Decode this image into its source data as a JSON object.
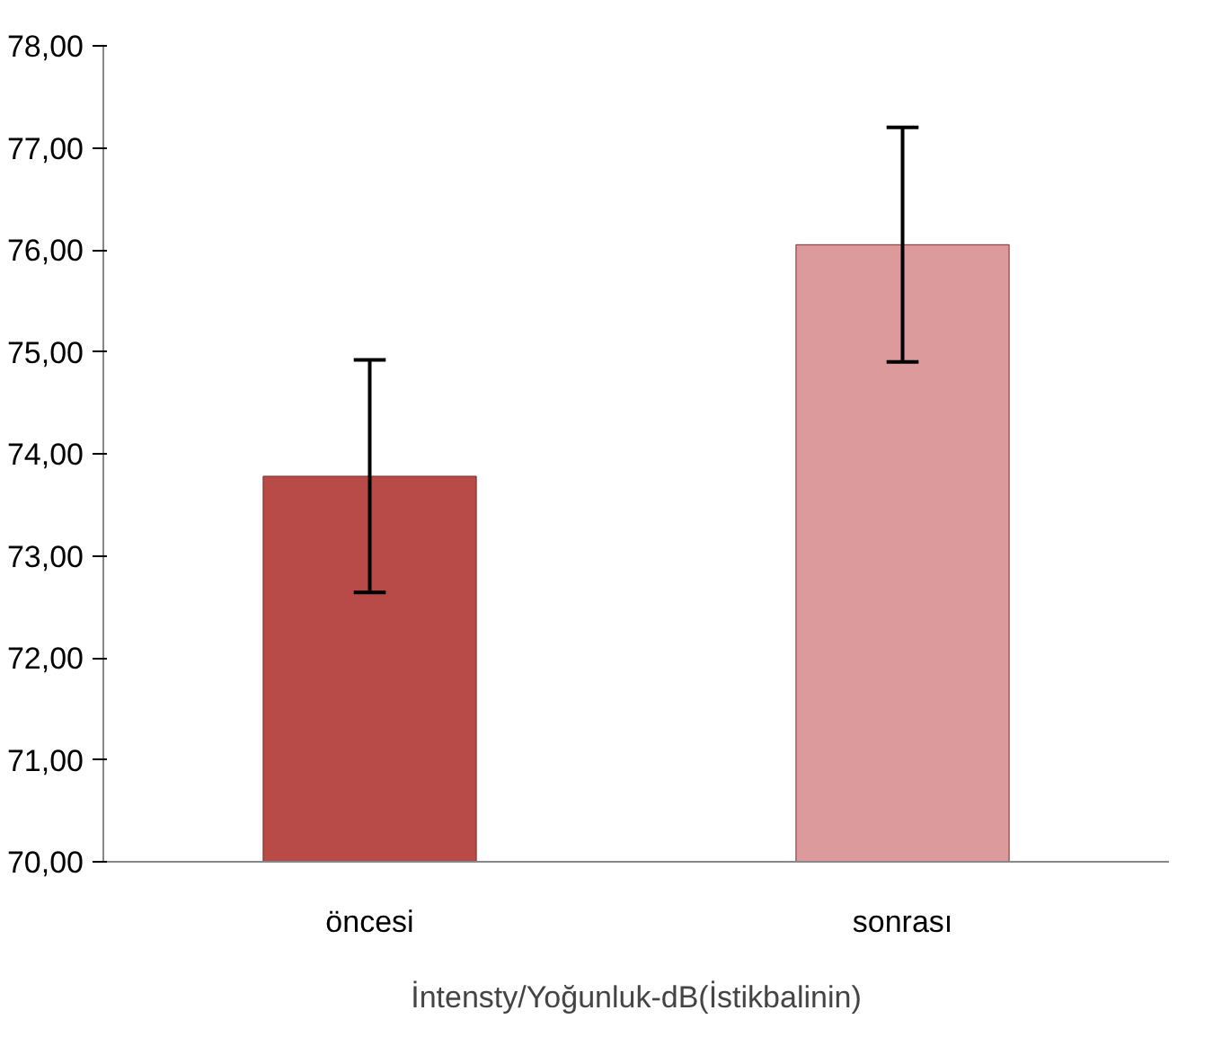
{
  "chart_data": {
    "type": "bar",
    "xlabel": "İntensty/Yoğunluk-dB(İstikbalinin)",
    "categories": [
      "öncesi",
      "sonrası"
    ],
    "values": [
      73.78,
      76.05
    ],
    "colors": [
      "#b84a48",
      "#dc9a9c"
    ],
    "errors": [
      1.14,
      1.15
    ],
    "ylim": [
      70,
      78
    ],
    "yticks": [
      {
        "value": 70,
        "label": "70,00"
      },
      {
        "value": 71,
        "label": "71,00"
      },
      {
        "value": 72,
        "label": "72,00"
      },
      {
        "value": 73,
        "label": "73,00"
      },
      {
        "value": 74,
        "label": "74,00"
      },
      {
        "value": 75,
        "label": "75,00"
      },
      {
        "value": 76,
        "label": "76,00"
      },
      {
        "value": 77,
        "label": "77,00"
      },
      {
        "value": 78,
        "label": "78,00"
      }
    ],
    "grid": false
  }
}
